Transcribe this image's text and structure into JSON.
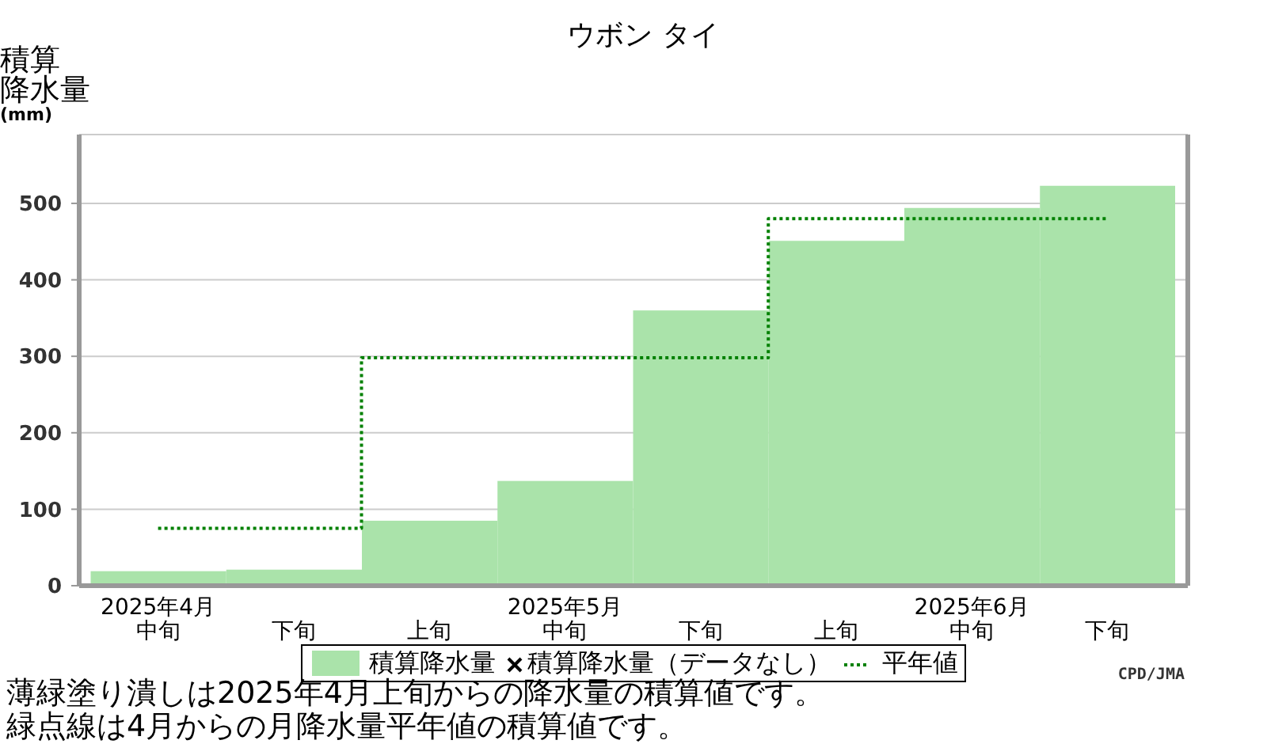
{
  "chart_data": {
    "type": "bar",
    "title": "ウボン タイ",
    "ylabel": "積算降水量(mm)",
    "categories": [
      "2025年4月中旬",
      "下旬",
      "上旬",
      "2025年5月中旬",
      "下旬",
      "上旬",
      "2025年6月中旬",
      "下旬"
    ],
    "series": [
      {
        "name": "積算降水量",
        "color": "#aae3aa",
        "values": [
          19,
          21,
          85,
          137,
          360,
          451,
          494,
          523
        ]
      },
      {
        "name": "積算降水量（データなし）",
        "type": "scatter",
        "marker": "cross",
        "color": "#000000",
        "values": [
          null,
          null,
          null,
          null,
          null,
          null,
          null,
          null
        ]
      },
      {
        "name": "平年値",
        "type": "step",
        "color": "#008000",
        "line_style": "dotted",
        "values": [
          75,
          75,
          298,
          298,
          298,
          480,
          480,
          480
        ]
      }
    ],
    "ylim": [
      0,
      590
    ],
    "yticks": [
      0,
      100,
      200,
      300,
      400,
      500
    ],
    "grid": "y",
    "legend": "bottom",
    "annotations": [
      "CPD/JMA",
      "薄緑塗り潰しは2025年4月上旬からの降水量の積算値です。",
      "緑点線は4月からの月降水量平年値の積算値です。"
    ]
  }
}
